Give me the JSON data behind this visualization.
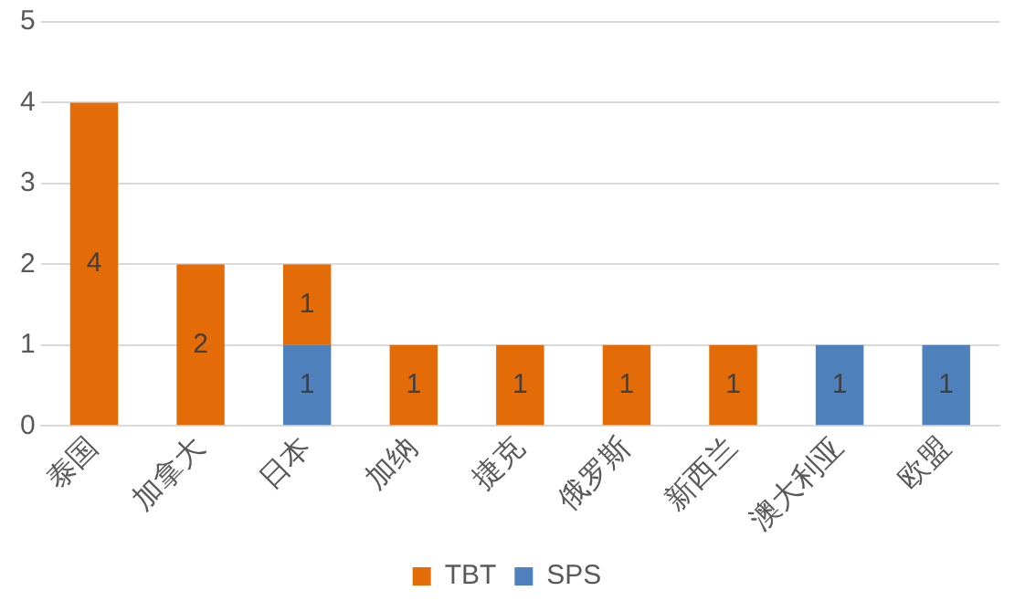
{
  "chart_data": {
    "type": "bar",
    "stacked": true,
    "categories": [
      "泰国",
      "加拿大",
      "日本",
      "加纳",
      "捷克",
      "俄罗斯",
      "新西兰",
      "澳大利亚",
      "欧盟"
    ],
    "series": [
      {
        "name": "SPS",
        "color": "#4f81bd",
        "values": [
          null,
          null,
          1,
          null,
          null,
          null,
          null,
          1,
          1
        ]
      },
      {
        "name": "TBT",
        "color": "#e36c09",
        "values": [
          4,
          2,
          1,
          1,
          1,
          1,
          1,
          null,
          null
        ]
      }
    ],
    "ylim": [
      0,
      5
    ],
    "yticks": [
      0,
      1,
      2,
      3,
      4,
      5
    ],
    "grid": "y",
    "legend": "bottom",
    "data_labels": true
  }
}
